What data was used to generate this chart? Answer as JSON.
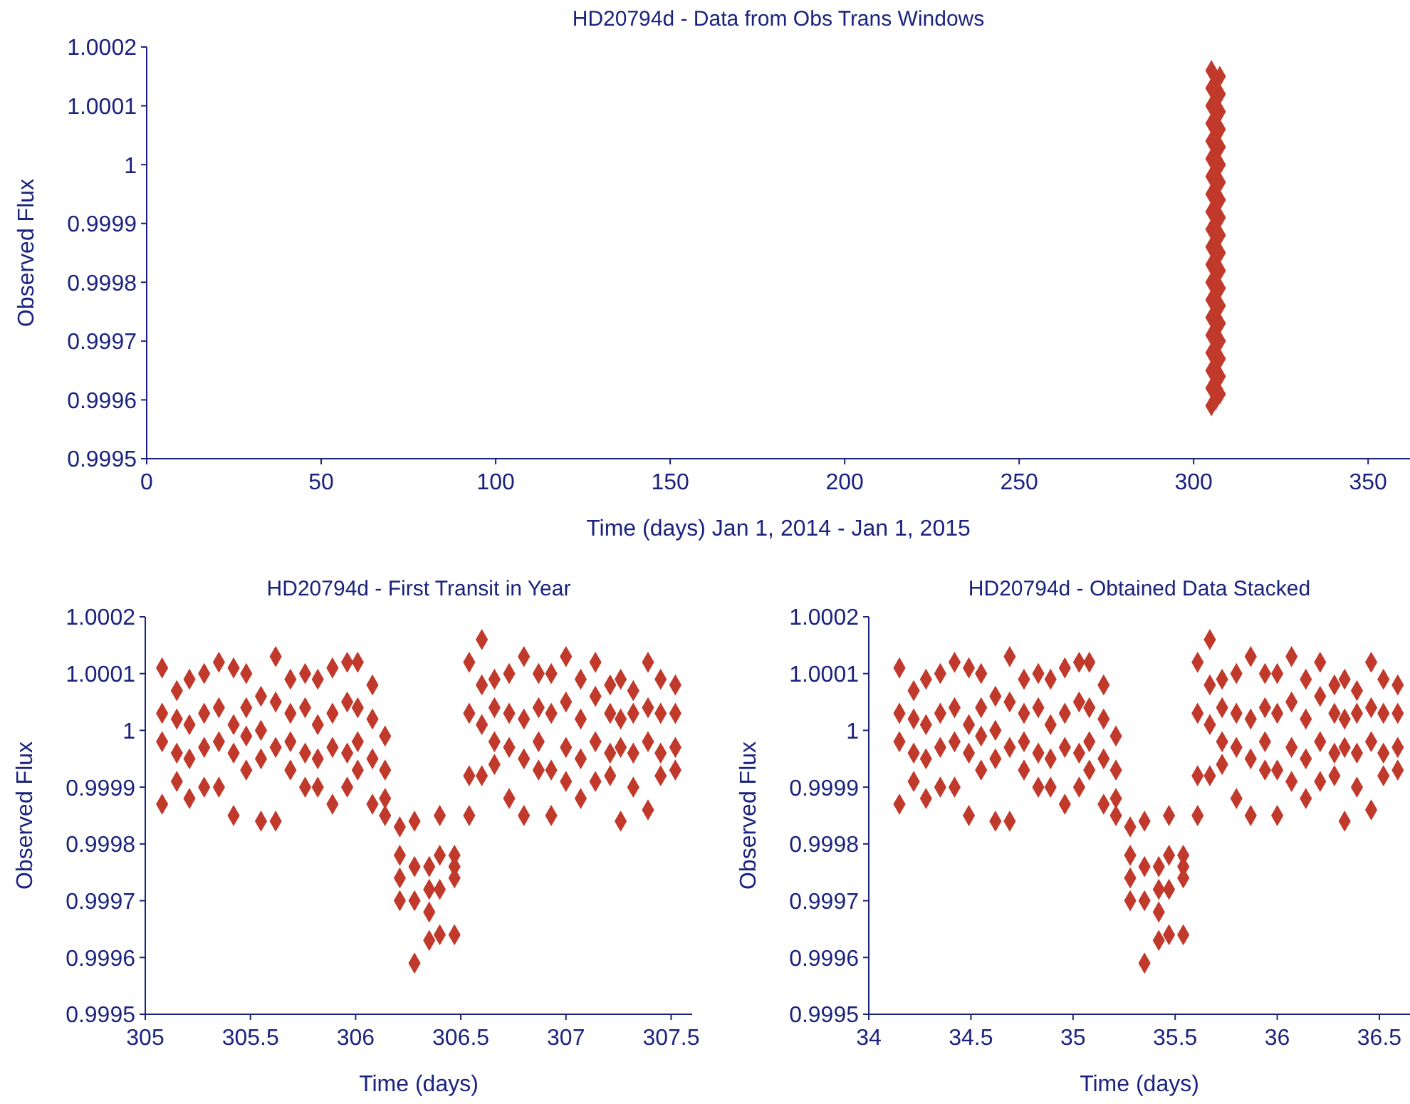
{
  "chart_data": [
    {
      "type": "scatter",
      "title": "HD20794d  - Data from Obs Trans Windows",
      "xlabel": "Time (days) Jan 1, 2014 - Jan 1, 2015",
      "ylabel": "Observed Flux",
      "xlim": [
        0,
        362
      ],
      "xticks": [
        0,
        50,
        100,
        150,
        200,
        250,
        300,
        350
      ],
      "ylim": [
        0.9995,
        1.0002
      ],
      "yticks": [
        0.9995,
        0.9996,
        0.9997,
        0.9998,
        0.9999,
        1,
        1.0001,
        1.0002
      ],
      "marker": "diamond",
      "color": "#c0392b",
      "x": [
        305.1,
        306.3,
        307.5,
        305.1,
        306.3,
        307.5,
        305.1,
        306.3,
        307.5,
        305.1,
        306.3,
        307.5,
        305.1,
        306.3,
        307.5,
        305.1,
        306.3,
        307.5,
        305.1,
        306.3,
        307.5,
        305.1,
        306.3,
        307.5,
        305.1,
        306.3,
        307.5,
        305.1,
        306.3,
        307.5,
        305.1,
        306.3,
        307.5,
        305.1,
        306.3,
        307.5,
        305.1,
        306.3,
        307.5,
        305.1,
        306.3,
        307.5,
        305.1,
        306.3,
        307.5,
        305.1,
        306.3,
        307.5,
        305.1,
        306.3,
        307.5,
        305.1,
        306.3,
        307.5,
        305.1,
        306.3,
        307.5,
        305.1
      ],
      "values": [
        0.99959,
        0.9996,
        0.99961,
        0.99962,
        0.99963,
        0.99964,
        0.99965,
        0.99966,
        0.99967,
        0.99968,
        0.99969,
        0.9997,
        0.99971,
        0.99972,
        0.99973,
        0.99974,
        0.99975,
        0.99976,
        0.99977,
        0.99978,
        0.99979,
        0.9998,
        0.99981,
        0.99982,
        0.99983,
        0.99984,
        0.99985,
        0.99986,
        0.99987,
        0.99988,
        0.99989,
        0.9999,
        0.99991,
        0.99992,
        0.99993,
        0.99994,
        0.99995,
        0.99996,
        0.99997,
        0.99998,
        0.99999,
        1,
        1.00001,
        1.00002,
        1.00003,
        1.00004,
        1.00005,
        1.00006,
        1.00007,
        1.00008,
        1.00009,
        1.0001,
        1.00011,
        1.00012,
        1.00013,
        1.00014,
        1.00015,
        1.00016
      ]
    },
    {
      "type": "scatter",
      "title": "HD20794d  - First Transit in Year",
      "xlabel": "Time (days)",
      "ylabel": "Observed Flux",
      "xlim": [
        305,
        307.6
      ],
      "xticks": [
        305,
        305.5,
        306,
        306.5,
        307,
        307.5
      ],
      "ylim": [
        0.9995,
        1.0002
      ],
      "yticks": [
        0.9995,
        0.9996,
        0.9997,
        0.9998,
        0.9999,
        1,
        1.0001,
        1.0002
      ],
      "marker": "diamond",
      "color": "#c0392b",
      "x": [
        305.08,
        305.08,
        305.08,
        305.08,
        305.15,
        305.15,
        305.15,
        305.15,
        305.21,
        305.21,
        305.21,
        305.21,
        305.28,
        305.28,
        305.28,
        305.28,
        305.35,
        305.35,
        305.35,
        305.35,
        305.42,
        305.42,
        305.42,
        305.42,
        305.48,
        305.48,
        305.48,
        305.48,
        305.55,
        305.55,
        305.55,
        305.55,
        305.62,
        305.62,
        305.62,
        305.62,
        305.69,
        305.69,
        305.69,
        305.69,
        305.76,
        305.76,
        305.76,
        305.76,
        305.82,
        305.82,
        305.82,
        305.82,
        305.89,
        305.89,
        305.89,
        305.89,
        305.96,
        305.96,
        305.96,
        305.96,
        306.01,
        306.01,
        306.01,
        306.01,
        306.08,
        306.08,
        306.08,
        306.08,
        306.14,
        306.14,
        306.14,
        306.14,
        306.21,
        306.21,
        306.21,
        306.21,
        306.28,
        306.28,
        306.28,
        306.28,
        306.35,
        306.35,
        306.35,
        306.35,
        306.4,
        306.4,
        306.4,
        306.4,
        306.47,
        306.47,
        306.47,
        306.47,
        306.54,
        306.54,
        306.54,
        306.54,
        306.6,
        306.6,
        306.6,
        306.6,
        306.66,
        306.66,
        306.66,
        306.66,
        306.73,
        306.73,
        306.73,
        306.73,
        306.8,
        306.8,
        306.8,
        306.8,
        306.87,
        306.87,
        306.87,
        306.87,
        306.93,
        306.93,
        306.93,
        306.93,
        307,
        307,
        307,
        307,
        307.07,
        307.07,
        307.07,
        307.07,
        307.14,
        307.14,
        307.14,
        307.14,
        307.21,
        307.21,
        307.21,
        307.21,
        307.26,
        307.26,
        307.26,
        307.26,
        307.32,
        307.32,
        307.32,
        307.32,
        307.39,
        307.39,
        307.39,
        307.39,
        307.45,
        307.45,
        307.45,
        307.45,
        307.52,
        307.52,
        307.52,
        307.52
      ],
      "values": [
        1.00011,
        1.00003,
        0.99998,
        0.99987,
        1.00007,
        1.00002,
        0.99996,
        0.99991,
        1.00009,
        1.00001,
        0.99995,
        0.99988,
        1.0001,
        1.00003,
        0.99997,
        0.9999,
        1.00012,
        1.00004,
        0.99998,
        0.9999,
        1.00011,
        1.00001,
        0.99996,
        0.99985,
        1.0001,
        1.00004,
        0.99999,
        0.99993,
        1.00006,
        1,
        0.99995,
        0.99984,
        1.00013,
        1.00005,
        0.99997,
        0.99984,
        1.00009,
        1.00003,
        0.99998,
        0.99993,
        1.0001,
        1.00004,
        0.99996,
        0.9999,
        1.00009,
        1.00001,
        0.99995,
        0.9999,
        1.00011,
        1.00003,
        0.99997,
        0.99987,
        1.00012,
        1.00005,
        0.99996,
        0.9999,
        1.00012,
        1.00004,
        0.99998,
        0.99993,
        1.00008,
        1.00002,
        0.99995,
        0.99987,
        0.99999,
        0.99993,
        0.99988,
        0.99985,
        0.99983,
        0.99978,
        0.99974,
        0.9997,
        0.99984,
        0.99976,
        0.9997,
        0.99959,
        0.99976,
        0.99972,
        0.99968,
        0.99963,
        0.99985,
        0.99978,
        0.99972,
        0.99964,
        0.99978,
        0.99976,
        0.99974,
        0.99964,
        1.00012,
        1.00003,
        0.99992,
        0.99985,
        1.00016,
        1.00008,
        1.00001,
        0.99992,
        1.00009,
        1.00004,
        0.99998,
        0.99994,
        1.0001,
        1.00003,
        0.99997,
        0.99988,
        1.00013,
        1.00002,
        0.99995,
        0.99985,
        1.0001,
        1.00004,
        0.99998,
        0.99993,
        1.0001,
        1.00003,
        0.99993,
        0.99985,
        1.00013,
        1.00005,
        0.99997,
        0.99991,
        1.00009,
        1.00002,
        0.99995,
        0.99988,
        1.00012,
        1.00006,
        0.99998,
        0.99991,
        1.00008,
        1.00003,
        0.99996,
        0.99992,
        1.00009,
        1.00002,
        0.99997,
        0.99984,
        1.00007,
        1.00003,
        0.99996,
        0.9999,
        1.00012,
        1.00004,
        0.99998,
        0.99986,
        1.00009,
        1.00003,
        0.99996,
        0.99992,
        1.00008,
        1.00003,
        0.99997,
        0.99993
      ]
    },
    {
      "type": "scatter",
      "title": "HD20794d  - Obtained Data Stacked",
      "xlabel": "Time (days)",
      "ylabel": "Observed Flux",
      "xlim": [
        34,
        36.65
      ],
      "xticks": [
        34,
        34.5,
        35,
        35.5,
        36,
        36.5
      ],
      "ylim": [
        0.9995,
        1.0002
      ],
      "yticks": [
        0.9995,
        0.9996,
        0.9997,
        0.9998,
        0.9999,
        1,
        1.0001,
        1.0002
      ],
      "marker": "diamond",
      "color": "#c0392b",
      "x": [
        34.15,
        34.15,
        34.15,
        34.15,
        34.22,
        34.22,
        34.22,
        34.22,
        34.28,
        34.28,
        34.28,
        34.28,
        34.35,
        34.35,
        34.35,
        34.35,
        34.42,
        34.42,
        34.42,
        34.42,
        34.49,
        34.49,
        34.49,
        34.49,
        34.55,
        34.55,
        34.55,
        34.55,
        34.62,
        34.62,
        34.62,
        34.62,
        34.69,
        34.69,
        34.69,
        34.69,
        34.76,
        34.76,
        34.76,
        34.76,
        34.83,
        34.83,
        34.83,
        34.83,
        34.89,
        34.89,
        34.89,
        34.89,
        34.96,
        34.96,
        34.96,
        34.96,
        35.03,
        35.03,
        35.03,
        35.03,
        35.08,
        35.08,
        35.08,
        35.08,
        35.15,
        35.15,
        35.15,
        35.15,
        35.21,
        35.21,
        35.21,
        35.21,
        35.28,
        35.28,
        35.28,
        35.28,
        35.35,
        35.35,
        35.35,
        35.35,
        35.42,
        35.42,
        35.42,
        35.42,
        35.47,
        35.47,
        35.47,
        35.47,
        35.54,
        35.54,
        35.54,
        35.54,
        35.61,
        35.61,
        35.61,
        35.61,
        35.67,
        35.67,
        35.67,
        35.67,
        35.73,
        35.73,
        35.73,
        35.73,
        35.8,
        35.8,
        35.8,
        35.8,
        35.87,
        35.87,
        35.87,
        35.87,
        35.94,
        35.94,
        35.94,
        35.94,
        36,
        36,
        36,
        36,
        36.07,
        36.07,
        36.07,
        36.07,
        36.14,
        36.14,
        36.14,
        36.14,
        36.21,
        36.21,
        36.21,
        36.21,
        36.28,
        36.28,
        36.28,
        36.28,
        36.33,
        36.33,
        36.33,
        36.33,
        36.39,
        36.39,
        36.39,
        36.39,
        36.46,
        36.46,
        36.46,
        36.46,
        36.52,
        36.52,
        36.52,
        36.52,
        36.59,
        36.59,
        36.59,
        36.59
      ],
      "values": [
        1.00011,
        1.00003,
        0.99998,
        0.99987,
        1.00007,
        1.00002,
        0.99996,
        0.99991,
        1.00009,
        1.00001,
        0.99995,
        0.99988,
        1.0001,
        1.00003,
        0.99997,
        0.9999,
        1.00012,
        1.00004,
        0.99998,
        0.9999,
        1.00011,
        1.00001,
        0.99996,
        0.99985,
        1.0001,
        1.00004,
        0.99999,
        0.99993,
        1.00006,
        1,
        0.99995,
        0.99984,
        1.00013,
        1.00005,
        0.99997,
        0.99984,
        1.00009,
        1.00003,
        0.99998,
        0.99993,
        1.0001,
        1.00004,
        0.99996,
        0.9999,
        1.00009,
        1.00001,
        0.99995,
        0.9999,
        1.00011,
        1.00003,
        0.99997,
        0.99987,
        1.00012,
        1.00005,
        0.99996,
        0.9999,
        1.00012,
        1.00004,
        0.99998,
        0.99993,
        1.00008,
        1.00002,
        0.99995,
        0.99987,
        0.99999,
        0.99993,
        0.99988,
        0.99985,
        0.99983,
        0.99978,
        0.99974,
        0.9997,
        0.99984,
        0.99976,
        0.9997,
        0.99959,
        0.99976,
        0.99972,
        0.99968,
        0.99963,
        0.99985,
        0.99978,
        0.99972,
        0.99964,
        0.99978,
        0.99976,
        0.99974,
        0.99964,
        1.00012,
        1.00003,
        0.99992,
        0.99985,
        1.00016,
        1.00008,
        1.00001,
        0.99992,
        1.00009,
        1.00004,
        0.99998,
        0.99994,
        1.0001,
        1.00003,
        0.99997,
        0.99988,
        1.00013,
        1.00002,
        0.99995,
        0.99985,
        1.0001,
        1.00004,
        0.99998,
        0.99993,
        1.0001,
        1.00003,
        0.99993,
        0.99985,
        1.00013,
        1.00005,
        0.99997,
        0.99991,
        1.00009,
        1.00002,
        0.99995,
        0.99988,
        1.00012,
        1.00006,
        0.99998,
        0.99991,
        1.00008,
        1.00003,
        0.99996,
        0.99992,
        1.00009,
        1.00002,
        0.99997,
        0.99984,
        1.00007,
        1.00003,
        0.99996,
        0.9999,
        1.00012,
        1.00004,
        0.99998,
        0.99986,
        1.00009,
        1.00003,
        0.99996,
        0.99992,
        1.00008,
        1.00003,
        0.99997,
        0.99993
      ]
    }
  ]
}
